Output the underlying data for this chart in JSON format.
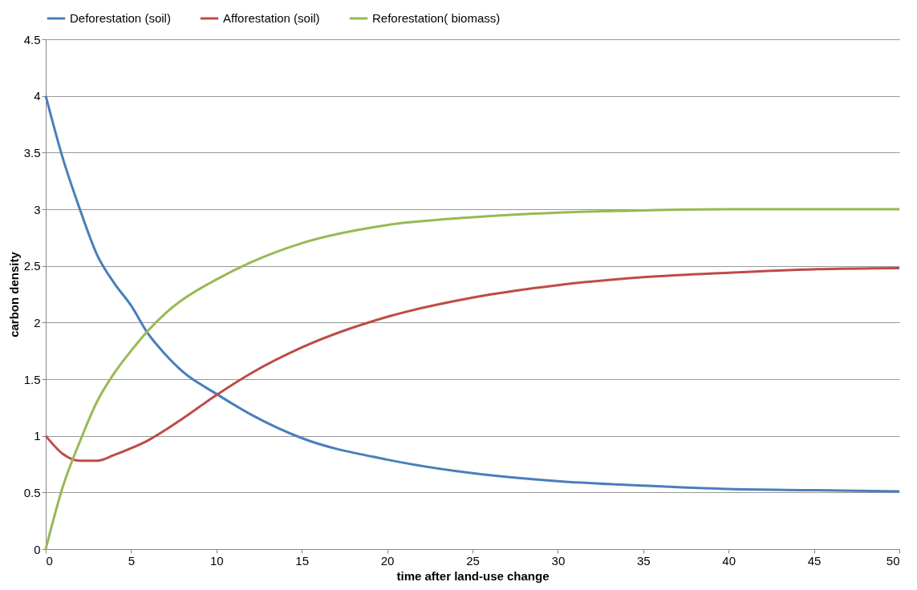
{
  "chart_data": {
    "type": "line",
    "xlabel": "time after land-use change",
    "ylabel": "carbon density",
    "x": [
      0,
      1,
      2,
      3,
      4,
      5,
      6,
      7,
      8,
      10,
      12,
      15,
      20,
      25,
      30,
      35,
      40,
      45,
      50
    ],
    "series": [
      {
        "name": "Deforestation (soil)",
        "color": "#4a7ebb",
        "values": [
          4.0,
          3.45,
          3.0,
          2.6,
          2.35,
          2.15,
          1.9,
          1.72,
          1.57,
          1.37,
          1.19,
          0.98,
          0.79,
          0.67,
          0.6,
          0.56,
          0.53,
          0.52,
          0.51
        ]
      },
      {
        "name": "Afforestation (soil)",
        "color": "#be4b48",
        "values": [
          1.0,
          0.84,
          0.78,
          0.78,
          0.83,
          0.89,
          0.96,
          1.05,
          1.15,
          1.36,
          1.55,
          1.78,
          2.05,
          2.22,
          2.33,
          2.4,
          2.44,
          2.47,
          2.48
        ]
      },
      {
        "name": "Reforestation( biomass)",
        "color": "#98b954",
        "values": [
          0.0,
          0.55,
          0.95,
          1.3,
          1.55,
          1.75,
          1.93,
          2.08,
          2.2,
          2.38,
          2.53,
          2.7,
          2.86,
          2.93,
          2.97,
          2.99,
          3.0,
          3.0,
          3.0
        ]
      }
    ],
    "xlim": [
      0,
      50
    ],
    "xticks": [
      0,
      5,
      10,
      15,
      20,
      25,
      30,
      35,
      40,
      45,
      50
    ],
    "ylim": [
      0,
      4.5
    ],
    "yticks": [
      0,
      0.5,
      1,
      1.5,
      2,
      2.5,
      3,
      3.5,
      4,
      4.5
    ],
    "grid": "y",
    "legend": "top",
    "marker": "none",
    "line_style": "solid"
  }
}
